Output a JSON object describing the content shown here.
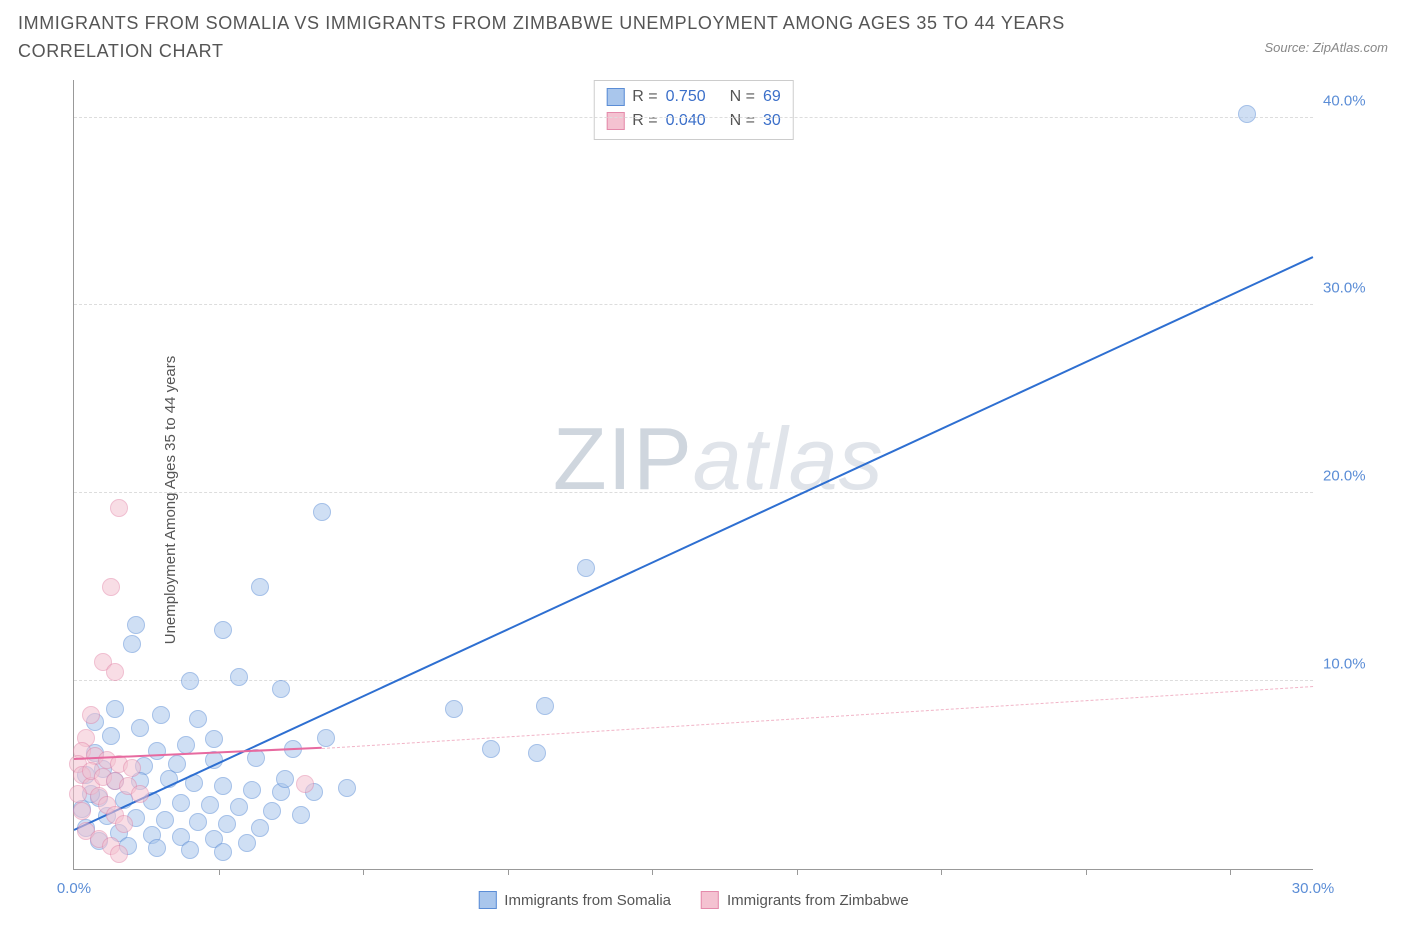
{
  "title": "IMMIGRANTS FROM SOMALIA VS IMMIGRANTS FROM ZIMBABWE UNEMPLOYMENT AMONG AGES 35 TO 44 YEARS CORRELATION CHART",
  "source": "Source: ZipAtlas.com",
  "y_axis_label": "Unemployment Among Ages 35 to 44 years",
  "watermark_a": "ZIP",
  "watermark_b": "atlas",
  "chart": {
    "type": "scatter",
    "xlim": [
      0,
      30
    ],
    "ylim": [
      0,
      42
    ],
    "x_ticks": [
      0,
      30
    ],
    "x_tick_labels": [
      "0.0%",
      "30.0%"
    ],
    "x_minor_ticks": [
      3.5,
      7,
      10.5,
      14,
      17.5,
      21,
      24.5,
      28
    ],
    "y_ticks": [
      10,
      20,
      30,
      40
    ],
    "y_tick_labels": [
      "10.0%",
      "20.0%",
      "30.0%",
      "40.0%"
    ],
    "grid_color": "#dddddd",
    "axis_color": "#999999",
    "tick_label_color": "#5b8dd6",
    "background_color": "#ffffff"
  },
  "series": [
    {
      "name": "Immigrants from Somalia",
      "fill": "#a9c6ec",
      "stroke": "#5b8dd6",
      "fill_opacity": 0.55,
      "marker_radius": 9,
      "R": "0.750",
      "N": "69",
      "trend": {
        "x1": 0,
        "y1": 2.0,
        "x2": 30,
        "y2": 32.5,
        "color": "#2e6fd1",
        "style": "solid",
        "width": 2.5
      },
      "points": [
        [
          28.4,
          40.2
        ],
        [
          12.4,
          16.0
        ],
        [
          6.0,
          19.0
        ],
        [
          4.5,
          15.0
        ],
        [
          3.6,
          12.7
        ],
        [
          1.5,
          13.0
        ],
        [
          1.4,
          12.0
        ],
        [
          2.8,
          10.0
        ],
        [
          4.0,
          10.2
        ],
        [
          5.0,
          9.6
        ],
        [
          1.0,
          8.5
        ],
        [
          2.1,
          8.2
        ],
        [
          3.0,
          8.0
        ],
        [
          9.2,
          8.5
        ],
        [
          11.4,
          8.7
        ],
        [
          6.1,
          7.0
        ],
        [
          5.3,
          6.4
        ],
        [
          4.4,
          5.9
        ],
        [
          3.4,
          5.8
        ],
        [
          2.5,
          5.6
        ],
        [
          1.7,
          5.5
        ],
        [
          0.7,
          5.3
        ],
        [
          10.1,
          6.4
        ],
        [
          11.2,
          6.2
        ],
        [
          1.0,
          4.7
        ],
        [
          1.6,
          4.7
        ],
        [
          2.3,
          4.8
        ],
        [
          2.9,
          4.6
        ],
        [
          3.6,
          4.4
        ],
        [
          4.3,
          4.2
        ],
        [
          5.0,
          4.1
        ],
        [
          5.8,
          4.1
        ],
        [
          5.1,
          4.8
        ],
        [
          6.6,
          4.3
        ],
        [
          0.6,
          3.8
        ],
        [
          1.2,
          3.7
        ],
        [
          1.9,
          3.6
        ],
        [
          2.6,
          3.5
        ],
        [
          3.3,
          3.4
        ],
        [
          4.0,
          3.3
        ],
        [
          4.8,
          3.1
        ],
        [
          5.5,
          2.9
        ],
        [
          0.8,
          2.8
        ],
        [
          1.5,
          2.7
        ],
        [
          2.2,
          2.6
        ],
        [
          3.0,
          2.5
        ],
        [
          3.7,
          2.4
        ],
        [
          4.5,
          2.2
        ],
        [
          1.1,
          1.9
        ],
        [
          1.9,
          1.8
        ],
        [
          2.6,
          1.7
        ],
        [
          3.4,
          1.6
        ],
        [
          4.2,
          1.4
        ],
        [
          2.0,
          1.1
        ],
        [
          2.8,
          1.0
        ],
        [
          3.6,
          0.9
        ],
        [
          0.5,
          6.2
        ],
        [
          0.3,
          5.0
        ],
        [
          0.4,
          4.0
        ],
        [
          0.2,
          3.2
        ],
        [
          0.3,
          2.2
        ],
        [
          0.6,
          1.5
        ],
        [
          1.3,
          1.2
        ],
        [
          2.0,
          6.3
        ],
        [
          2.7,
          6.6
        ],
        [
          3.4,
          6.9
        ],
        [
          0.9,
          7.1
        ],
        [
          1.6,
          7.5
        ],
        [
          0.5,
          7.8
        ]
      ]
    },
    {
      "name": "Immigrants from Zimbabwe",
      "fill": "#f4c2d1",
      "stroke": "#e48aab",
      "fill_opacity": 0.55,
      "marker_radius": 9,
      "R": "0.040",
      "N": "30",
      "trend_solid": {
        "x1": 0,
        "y1": 5.8,
        "x2": 6.0,
        "y2": 6.4,
        "color": "#e76aa0",
        "style": "solid",
        "width": 2.5
      },
      "trend_dash": {
        "x1": 6.0,
        "y1": 6.4,
        "x2": 30,
        "y2": 9.7,
        "color": "#f1b4c7",
        "style": "dash",
        "width": 1.5
      },
      "points": [
        [
          1.1,
          19.2
        ],
        [
          0.9,
          15.0
        ],
        [
          0.7,
          11.0
        ],
        [
          1.0,
          10.5
        ],
        [
          0.4,
          8.2
        ],
        [
          0.3,
          7.0
        ],
        [
          0.2,
          6.3
        ],
        [
          0.1,
          5.6
        ],
        [
          0.2,
          5.0
        ],
        [
          0.4,
          4.4
        ],
        [
          0.6,
          3.9
        ],
        [
          0.8,
          3.4
        ],
        [
          1.0,
          2.9
        ],
        [
          1.2,
          2.4
        ],
        [
          0.3,
          2.0
        ],
        [
          0.6,
          1.6
        ],
        [
          0.9,
          1.2
        ],
        [
          1.1,
          0.8
        ],
        [
          0.1,
          4.0
        ],
        [
          0.2,
          3.1
        ],
        [
          0.5,
          6.0
        ],
        [
          0.8,
          5.8
        ],
        [
          1.1,
          5.6
        ],
        [
          1.4,
          5.4
        ],
        [
          0.4,
          5.2
        ],
        [
          0.7,
          4.9
        ],
        [
          1.0,
          4.7
        ],
        [
          1.3,
          4.4
        ],
        [
          1.6,
          4.0
        ],
        [
          5.6,
          4.5
        ]
      ]
    }
  ],
  "stats_box": {
    "rows": [
      {
        "swatch_fill": "#a9c6ec",
        "swatch_stroke": "#5b8dd6",
        "R_label": "R =",
        "R": "0.750",
        "N_label": "N =",
        "N": "69"
      },
      {
        "swatch_fill": "#f4c2d1",
        "swatch_stroke": "#e48aab",
        "R_label": "R =",
        "R": "0.040",
        "N_label": "N =",
        "N": "30"
      }
    ]
  },
  "legend": [
    {
      "swatch_fill": "#a9c6ec",
      "swatch_stroke": "#5b8dd6",
      "label": "Immigrants from Somalia"
    },
    {
      "swatch_fill": "#f4c2d1",
      "swatch_stroke": "#e48aab",
      "label": "Immigrants from Zimbabwe"
    }
  ]
}
